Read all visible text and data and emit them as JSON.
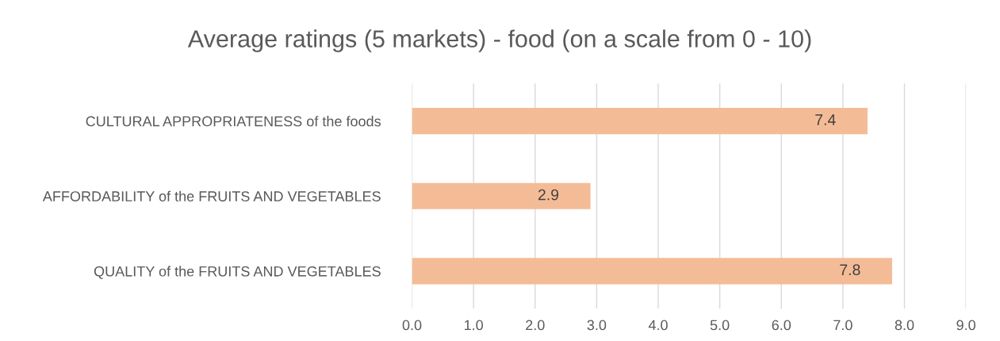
{
  "chart_data": {
    "type": "bar",
    "orientation": "horizontal",
    "title": "Average ratings (5 markets) - food (on a scale from 0 - 10)",
    "categories": [
      "CULTURAL APPROPRIATENESS of the foods",
      "AFFORDABILITY of the FRUITS AND VEGETABLES",
      "QUALITY of the FRUITS AND VEGETABLES"
    ],
    "values": [
      7.4,
      2.9,
      7.8
    ],
    "color": "#f4bc96",
    "data_labels": true,
    "grid": "x",
    "xlim": [
      0,
      9
    ],
    "xticks": [
      {
        "value": 0,
        "label": "0.0"
      },
      {
        "value": 1,
        "label": "1.0"
      },
      {
        "value": 2,
        "label": "2.0"
      },
      {
        "value": 3,
        "label": "3.0"
      },
      {
        "value": 4,
        "label": "4.0"
      },
      {
        "value": 5,
        "label": "5.0"
      },
      {
        "value": 6,
        "label": "6.0"
      },
      {
        "value": 7,
        "label": "7.0"
      },
      {
        "value": 8,
        "label": "8.0"
      },
      {
        "value": 9,
        "label": "9.0"
      }
    ]
  }
}
